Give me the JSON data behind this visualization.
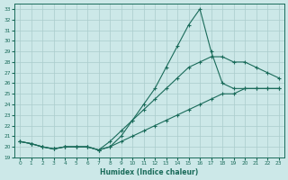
{
  "xlabel": "Humidex (Indice chaleur)",
  "bg_color": "#cce8e8",
  "line_color": "#1a6b5a",
  "grid_color": "#aacccc",
  "xlim": [
    -0.5,
    23.5
  ],
  "ylim": [
    19,
    33.5
  ],
  "xticks": [
    0,
    1,
    2,
    3,
    4,
    5,
    6,
    7,
    8,
    9,
    10,
    11,
    12,
    13,
    14,
    15,
    16,
    17,
    18,
    19,
    20,
    21,
    22,
    23
  ],
  "yticks": [
    19,
    20,
    21,
    22,
    23,
    24,
    25,
    26,
    27,
    28,
    29,
    30,
    31,
    32,
    33
  ],
  "line1_x": [
    0,
    1,
    2,
    3,
    4,
    5,
    6,
    7,
    8,
    9,
    10,
    11,
    12,
    13,
    14,
    15,
    16,
    17,
    18,
    19,
    20,
    21,
    22,
    23
  ],
  "line1_y": [
    20.5,
    20.3,
    20.0,
    19.8,
    20.0,
    20.0,
    20.0,
    19.7,
    20.0,
    21.0,
    22.5,
    24.0,
    25.5,
    27.5,
    29.5,
    31.5,
    33.0,
    29.0,
    26.0,
    25.5,
    25.5,
    25.5,
    25.5,
    25.5
  ],
  "line2_x": [
    0,
    1,
    2,
    3,
    4,
    5,
    6,
    7,
    8,
    9,
    10,
    11,
    12,
    13,
    14,
    15,
    16,
    17,
    18,
    19,
    20,
    21,
    22,
    23
  ],
  "line2_y": [
    20.5,
    20.3,
    20.0,
    19.8,
    20.0,
    20.0,
    20.0,
    19.7,
    20.5,
    21.5,
    22.5,
    23.5,
    24.5,
    25.5,
    26.5,
    27.5,
    28.0,
    28.5,
    28.5,
    28.0,
    28.0,
    27.5,
    27.0,
    26.5
  ],
  "line3_x": [
    0,
    1,
    2,
    3,
    4,
    5,
    6,
    7,
    8,
    9,
    10,
    11,
    12,
    13,
    14,
    15,
    16,
    17,
    18,
    19,
    20,
    21,
    22,
    23
  ],
  "line3_y": [
    20.5,
    20.3,
    20.0,
    19.8,
    20.0,
    20.0,
    20.0,
    19.7,
    20.0,
    20.5,
    21.0,
    21.5,
    22.0,
    22.5,
    23.0,
    23.5,
    24.0,
    24.5,
    25.0,
    25.0,
    25.5,
    25.5,
    25.5,
    25.5
  ]
}
